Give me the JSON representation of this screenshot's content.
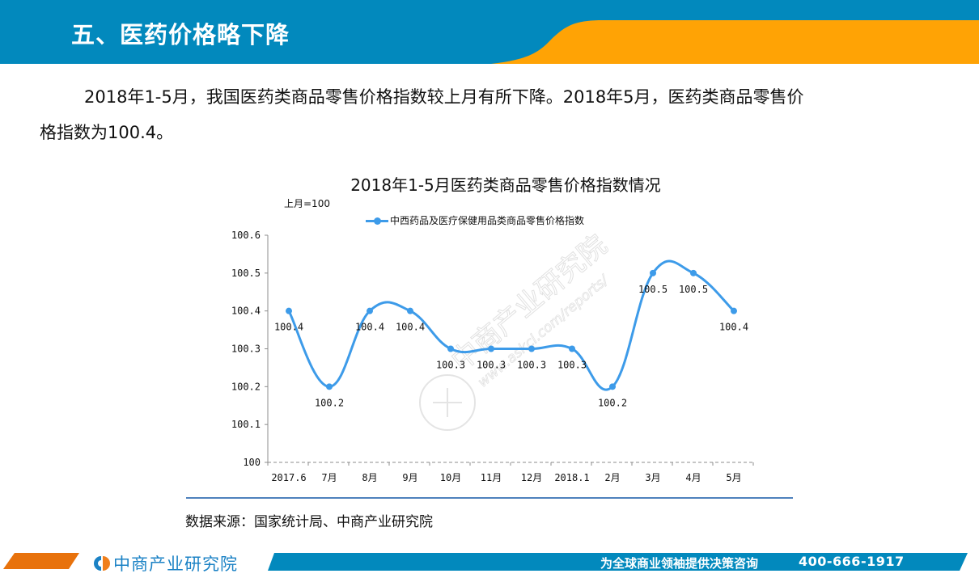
{
  "header": {
    "title": "五、医药价格略下降",
    "colors": {
      "blue": "#0289bd",
      "orange": "#ffa305"
    }
  },
  "paragraph": {
    "line1": "2018年1-5月，我国医药类商品零售价格指数较上月有所下降。2018年5月，医药类商品零售价",
    "line2": "格指数为100.4。"
  },
  "chart_data": {
    "type": "line",
    "title": "2018年1-5月医药类商品零售价格指数情况",
    "unit_note": "上月=100",
    "xlabel": "",
    "ylabel": "",
    "categories": [
      "2017.6",
      "7月",
      "8月",
      "9月",
      "10月",
      "11月",
      "12月",
      "2018.1",
      "2月",
      "3月",
      "4月",
      "5月"
    ],
    "series": [
      {
        "name": "中西药品及医疗保健用品类商品零售价格指数",
        "color": "#3d9be9",
        "values": [
          100.4,
          100.2,
          100.4,
          100.4,
          100.3,
          100.3,
          100.3,
          100.3,
          100.2,
          100.5,
          100.5,
          100.4
        ],
        "data_labels": [
          "100.4",
          "100.2",
          "100.4",
          "100.4",
          "100.3",
          "100.3",
          "100.3",
          "100.3",
          "100.2",
          "100.5",
          "100.5",
          "100.4"
        ]
      }
    ],
    "yticks": [
      "100",
      "100.1",
      "100.2",
      "100.3",
      "100.4",
      "100.5",
      "100.6"
    ],
    "ylim": [
      100,
      100.6
    ],
    "grid": false,
    "legend_position": "top",
    "smooth": true
  },
  "watermark": {
    "name": "中商产业研究院",
    "url": "www.askci.com/reports/"
  },
  "source": {
    "text": "数据来源：国家统计局、中商产业研究院"
  },
  "footer": {
    "logo_text": "中商产业研究院",
    "slogan": "为全球商业领袖提供决策咨询",
    "phone": "400-666-1917",
    "colors": {
      "orange": "#e8720c",
      "blue": "#0289bd"
    }
  }
}
